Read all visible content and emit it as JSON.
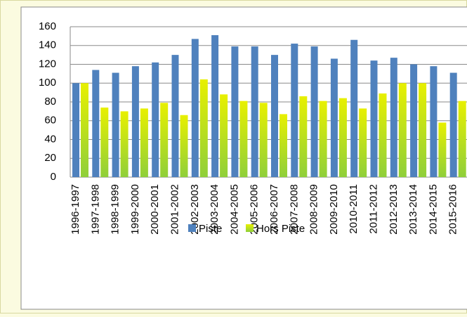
{
  "chart_data": {
    "type": "bar",
    "categories": [
      "1996-1997",
      "1997-1998",
      "1998-1999",
      "1999-2000",
      "2000-2001",
      "2001-2002",
      "2002-2003",
      "2003-2004",
      "2004-2005",
      "2005-2006",
      "2006-2007",
      "2007-2008",
      "2008-2009",
      "2009-2010",
      "2010-2011",
      "2011-2012",
      "2012-2013",
      "2013-2014",
      "2014-2015",
      "2015-2016"
    ],
    "series": [
      {
        "name": "Piste",
        "color": "#4f81bd",
        "values": [
          100,
          114,
          111,
          118,
          122,
          130,
          147,
          151,
          139,
          139,
          130,
          142,
          139,
          126,
          146,
          124,
          127,
          120,
          118,
          111
        ]
      },
      {
        "name": "Hors Piste",
        "color": "#e8f000",
        "values": [
          100,
          74,
          70,
          73,
          79,
          66,
          104,
          88,
          81,
          79,
          67,
          86,
          81,
          84,
          73,
          89,
          100,
          100,
          58,
          81
        ]
      }
    ],
    "ylim": [
      0,
      160
    ],
    "yticks": [
      0,
      20,
      40,
      60,
      80,
      100,
      120,
      140,
      160
    ],
    "grid": true,
    "legend": "bottom"
  }
}
